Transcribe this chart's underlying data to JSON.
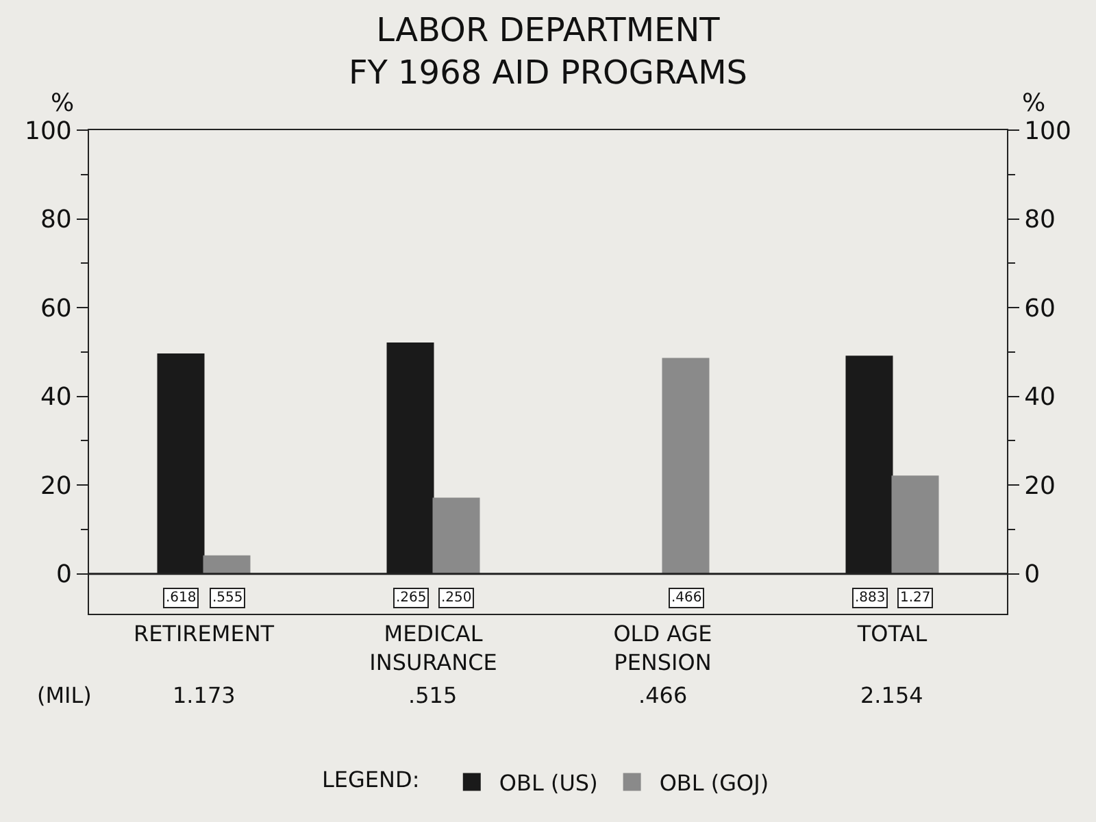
{
  "chart_data": {
    "type": "bar",
    "title": "LABOR DEPARTMENT\nFY 1968 AID PROGRAMS",
    "ylabel": "%",
    "y2label": "%",
    "legend_title": "LEGEND:",
    "categories": [
      "RETIREMENT",
      "MEDICAL INSURANCE",
      "OLD AGE PENSION",
      "TOTAL"
    ],
    "series": [
      {
        "name": "OBL (US)",
        "color": "#1a1a1a",
        "values": [
          49.5,
          52,
          null,
          49
        ]
      },
      {
        "name": "OBL (GOJ)",
        "color": "#8a8a8a",
        "values": [
          4,
          17,
          48.5,
          22
        ]
      }
    ],
    "annotations": [
      "(MIL)",
      "1.173",
      ".515",
      ".466",
      "2.154",
      ".618",
      ".555",
      ".265",
      ".250",
      ".466",
      ".883",
      "1.27"
    ],
    "grid": false,
    "ref_lines": [
      {
        "axis": "y",
        "value": 0,
        "color": "#222222"
      }
    ],
    "ylim": [
      -9,
      100
    ],
    "yticks": [
      0,
      20,
      40,
      60,
      80,
      100
    ],
    "y2lim": [
      -9,
      100
    ],
    "y2ticks": [
      0,
      20,
      40,
      60,
      80,
      100
    ],
    "legend": "bottom"
  }
}
